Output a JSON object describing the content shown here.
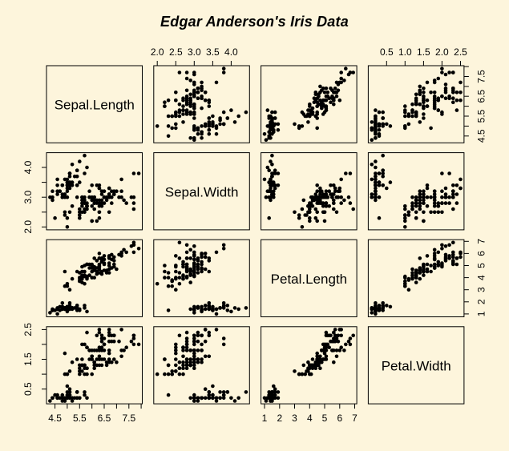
{
  "colors": {
    "background": "#FDF5DC",
    "panel_border": "#000000",
    "point": "#000000",
    "text": "#000000"
  },
  "chart_data": {
    "type": "scatter",
    "subtype": "pairs-scatterplot-matrix",
    "title": "Edgar Anderson's Iris Data",
    "grid": "off",
    "legend": "none",
    "variables": [
      "Sepal.Length",
      "Sepal.Width",
      "Petal.Length",
      "Petal.Width"
    ],
    "axis_sides": {
      "top_axis_columns": [
        2,
        4
      ],
      "bottom_axis_columns": [
        1,
        3
      ],
      "left_axis_rows": [
        2,
        4
      ],
      "right_axis_rows": [
        1,
        3
      ]
    },
    "axes": {
      "Sepal.Length": {
        "range": [
          4.156,
          8.044
        ],
        "ticks": [
          4.5,
          5,
          5.5,
          6,
          6.5,
          7,
          7.5,
          8
        ],
        "labels_horizontal": {
          "values": [
            4.5,
            5.5,
            6.5,
            7.5
          ],
          "texts": [
            "4.5",
            "5.5",
            "6.5",
            "7.5"
          ]
        },
        "labels_vertical": {
          "values": [
            4.5,
            5.5,
            6.5,
            7.5
          ],
          "texts": [
            "4.5",
            "5.5",
            "6.5",
            "7.5"
          ]
        }
      },
      "Sepal.Width": {
        "range": [
          1.904,
          4.496
        ],
        "ticks": [
          2,
          2.5,
          3,
          3.5,
          4
        ],
        "labels_horizontal": {
          "values": [
            2,
            2.5,
            3,
            3.5,
            4
          ],
          "texts": [
            "2.0",
            "2.5",
            "3.0",
            "3.5",
            "4.0"
          ]
        },
        "labels_vertical": {
          "values": [
            2,
            3,
            4
          ],
          "texts": [
            "2.0",
            "3.0",
            "4.0"
          ]
        }
      },
      "Petal.Length": {
        "range": [
          0.764,
          7.136
        ],
        "ticks": [
          1,
          2,
          3,
          4,
          5,
          6,
          7
        ],
        "labels_horizontal": {
          "values": [
            1,
            2,
            3,
            4,
            5,
            6,
            7
          ],
          "texts": [
            "1",
            "2",
            "3",
            "4",
            "5",
            "6",
            "7"
          ]
        },
        "labels_vertical": {
          "values": [
            1,
            2,
            3,
            4,
            5,
            6,
            7
          ],
          "texts": [
            "1",
            "2",
            "3",
            "4",
            "5",
            "6",
            "7"
          ]
        }
      },
      "Petal.Width": {
        "range": [
          0.004,
          2.596
        ],
        "ticks": [
          0.5,
          1,
          1.5,
          2,
          2.5
        ],
        "labels_horizontal": {
          "values": [
            0.5,
            1,
            1.5,
            2,
            2.5
          ],
          "texts": [
            "0.5",
            "1.0",
            "1.5",
            "2.0",
            "2.5"
          ]
        },
        "labels_vertical": {
          "values": [
            0.5,
            1.5,
            2.5
          ],
          "texts": [
            "0.5",
            "1.5",
            "2.5"
          ]
        }
      }
    },
    "data": {
      "Sepal.Length": [
        5.1,
        4.9,
        4.7,
        4.6,
        5.0,
        5.4,
        4.6,
        5.0,
        4.4,
        4.9,
        5.4,
        4.8,
        4.8,
        4.3,
        5.8,
        5.7,
        5.4,
        5.1,
        5.7,
        5.1,
        5.4,
        5.1,
        4.6,
        5.1,
        4.8,
        5.0,
        5.0,
        5.2,
        5.2,
        4.7,
        4.8,
        5.4,
        5.2,
        5.5,
        4.9,
        5.0,
        5.5,
        4.9,
        4.4,
        5.1,
        5.0,
        4.5,
        4.4,
        5.0,
        5.1,
        4.8,
        5.1,
        4.6,
        5.3,
        5.0,
        7.0,
        6.4,
        6.9,
        5.5,
        6.5,
        5.7,
        6.3,
        4.9,
        6.6,
        5.2,
        5.0,
        5.9,
        6.0,
        6.1,
        5.6,
        6.7,
        5.6,
        5.8,
        6.2,
        5.6,
        5.9,
        6.1,
        6.3,
        6.1,
        6.4,
        6.6,
        6.8,
        6.7,
        6.0,
        5.7,
        5.5,
        5.5,
        5.8,
        6.0,
        5.4,
        6.0,
        6.7,
        6.3,
        5.6,
        5.5,
        5.5,
        6.1,
        5.8,
        5.0,
        5.6,
        5.7,
        5.7,
        6.2,
        5.1,
        5.7,
        6.3,
        5.8,
        7.1,
        6.3,
        6.5,
        7.6,
        4.9,
        7.3,
        6.7,
        7.2,
        6.5,
        6.4,
        6.8,
        5.7,
        5.8,
        6.4,
        6.5,
        7.7,
        7.7,
        6.0,
        6.9,
        5.6,
        7.7,
        6.3,
        6.7,
        7.2,
        6.2,
        6.1,
        6.4,
        7.2,
        7.4,
        7.9,
        6.4,
        6.3,
        6.1,
        7.7,
        6.3,
        6.4,
        6.0,
        6.9,
        6.7,
        6.9,
        5.8,
        6.8,
        6.7,
        6.7,
        6.3,
        6.5,
        6.2,
        5.9
      ],
      "Sepal.Width": [
        3.5,
        3.0,
        3.2,
        3.1,
        3.6,
        3.9,
        3.4,
        3.4,
        2.9,
        3.1,
        3.7,
        3.4,
        3.0,
        3.0,
        4.0,
        4.4,
        3.9,
        3.5,
        3.8,
        3.8,
        3.4,
        3.7,
        3.6,
        3.3,
        3.4,
        3.0,
        3.4,
        3.5,
        3.4,
        3.2,
        3.1,
        3.4,
        4.1,
        4.2,
        3.1,
        3.2,
        3.5,
        3.6,
        3.0,
        3.4,
        3.5,
        2.3,
        3.2,
        3.5,
        3.8,
        3.0,
        3.8,
        3.2,
        3.7,
        3.3,
        3.2,
        3.2,
        3.1,
        2.3,
        2.8,
        2.8,
        3.3,
        2.4,
        2.9,
        2.7,
        2.0,
        3.0,
        2.2,
        2.9,
        2.9,
        3.1,
        3.0,
        2.7,
        2.2,
        2.5,
        3.2,
        2.8,
        2.5,
        2.8,
        2.9,
        3.0,
        2.8,
        3.0,
        2.9,
        2.6,
        2.4,
        2.4,
        2.7,
        2.7,
        3.0,
        3.4,
        3.1,
        2.3,
        3.0,
        2.5,
        2.6,
        3.0,
        2.6,
        2.3,
        2.7,
        3.0,
        2.9,
        2.9,
        2.5,
        2.8,
        3.3,
        2.7,
        3.0,
        2.9,
        3.0,
        3.0,
        2.5,
        2.9,
        2.5,
        3.6,
        3.2,
        2.7,
        3.0,
        2.5,
        2.8,
        3.2,
        3.0,
        3.8,
        2.6,
        2.2,
        3.2,
        2.8,
        2.8,
        2.7,
        3.3,
        3.2,
        2.8,
        3.0,
        2.8,
        3.0,
        2.8,
        3.8,
        2.8,
        2.8,
        2.6,
        3.0,
        3.4,
        3.1,
        3.0,
        3.1,
        3.1,
        3.1,
        2.7,
        3.2,
        3.3,
        3.0,
        2.5,
        3.0,
        3.4,
        3.0
      ],
      "Petal.Length": [
        1.4,
        1.4,
        1.3,
        1.5,
        1.4,
        1.7,
        1.4,
        1.5,
        1.4,
        1.5,
        1.5,
        1.6,
        1.4,
        1.1,
        1.2,
        1.5,
        1.3,
        1.4,
        1.7,
        1.5,
        1.7,
        1.5,
        1.0,
        1.7,
        1.9,
        1.6,
        1.6,
        1.5,
        1.4,
        1.6,
        1.6,
        1.5,
        1.5,
        1.4,
        1.5,
        1.2,
        1.3,
        1.4,
        1.3,
        1.5,
        1.3,
        1.3,
        1.3,
        1.6,
        1.9,
        1.4,
        1.6,
        1.4,
        1.5,
        1.4,
        4.7,
        4.5,
        4.9,
        4.0,
        4.6,
        4.5,
        4.7,
        3.3,
        4.6,
        3.9,
        3.5,
        4.2,
        4.0,
        4.7,
        3.6,
        4.4,
        4.5,
        4.1,
        4.5,
        3.9,
        4.8,
        4.0,
        4.9,
        4.7,
        4.3,
        4.4,
        4.8,
        5.0,
        4.5,
        3.5,
        3.8,
        3.7,
        3.9,
        5.1,
        4.5,
        4.5,
        4.7,
        4.4,
        4.1,
        4.0,
        4.4,
        4.6,
        4.0,
        3.3,
        4.2,
        4.2,
        4.2,
        4.3,
        3.0,
        4.1,
        6.0,
        5.1,
        5.9,
        5.6,
        5.8,
        6.6,
        4.5,
        6.3,
        5.8,
        6.1,
        5.1,
        5.3,
        5.5,
        5.0,
        5.1,
        5.3,
        5.5,
        6.7,
        6.9,
        5.0,
        5.7,
        4.9,
        6.7,
        4.9,
        5.7,
        6.0,
        4.8,
        4.9,
        5.6,
        5.8,
        6.1,
        6.4,
        5.6,
        5.1,
        5.6,
        6.1,
        5.6,
        5.5,
        4.8,
        5.4,
        5.6,
        5.1,
        5.1,
        5.9,
        5.7,
        5.2,
        5.0,
        5.2,
        5.4,
        5.1
      ],
      "Petal.Width": [
        0.2,
        0.2,
        0.2,
        0.2,
        0.2,
        0.4,
        0.3,
        0.2,
        0.2,
        0.1,
        0.2,
        0.2,
        0.1,
        0.1,
        0.2,
        0.4,
        0.4,
        0.3,
        0.3,
        0.3,
        0.2,
        0.4,
        0.2,
        0.5,
        0.2,
        0.2,
        0.4,
        0.2,
        0.2,
        0.2,
        0.2,
        0.4,
        0.1,
        0.2,
        0.2,
        0.2,
        0.2,
        0.1,
        0.2,
        0.2,
        0.3,
        0.3,
        0.2,
        0.6,
        0.4,
        0.3,
        0.2,
        0.2,
        0.2,
        0.2,
        1.4,
        1.5,
        1.5,
        1.3,
        1.5,
        1.3,
        1.6,
        1.0,
        1.3,
        1.4,
        1.0,
        1.5,
        1.0,
        1.4,
        1.3,
        1.4,
        1.5,
        1.0,
        1.5,
        1.1,
        1.8,
        1.3,
        1.5,
        1.2,
        1.3,
        1.4,
        1.4,
        1.7,
        1.5,
        1.0,
        1.1,
        1.0,
        1.2,
        1.6,
        1.5,
        1.6,
        1.5,
        1.3,
        1.3,
        1.3,
        1.2,
        1.4,
        1.2,
        1.0,
        1.3,
        1.2,
        1.3,
        1.3,
        1.1,
        1.3,
        2.5,
        1.9,
        2.1,
        1.8,
        2.2,
        2.1,
        1.7,
        1.8,
        1.8,
        2.5,
        2.0,
        1.9,
        2.1,
        2.0,
        2.4,
        2.3,
        1.8,
        2.2,
        2.3,
        1.5,
        2.3,
        2.0,
        2.0,
        1.8,
        2.1,
        1.8,
        1.8,
        1.8,
        2.1,
        1.6,
        1.9,
        2.0,
        2.2,
        1.5,
        1.4,
        2.3,
        2.4,
        1.8,
        1.8,
        2.1,
        2.4,
        2.3,
        1.9,
        2.3,
        2.5,
        2.3,
        1.9,
        2.0,
        2.3,
        1.8
      ]
    }
  }
}
